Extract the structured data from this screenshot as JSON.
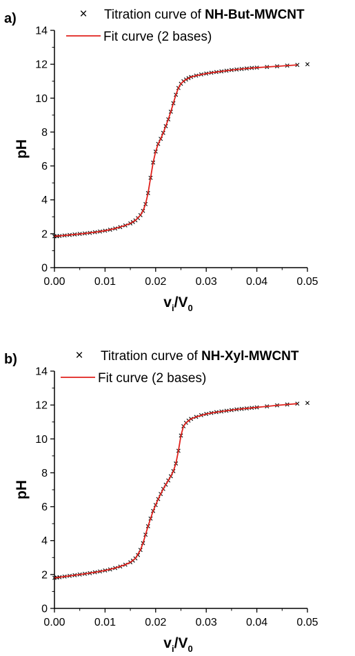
{
  "chart_data": [
    {
      "type": "scatter",
      "panel_label": "a)",
      "xlabel_main": "v",
      "xlabel_sub1": "i",
      "xlabel_sep": "/V",
      "xlabel_sub2": "0",
      "ylabel": "pH",
      "xlim": [
        0.0,
        0.05
      ],
      "ylim": [
        0,
        14
      ],
      "x_ticks": [
        "0.00",
        "0.01",
        "0.02",
        "0.03",
        "0.04",
        "0.05"
      ],
      "y_ticks": [
        "0",
        "2",
        "4",
        "6",
        "8",
        "10",
        "12",
        "14"
      ],
      "legend_position": "top",
      "legend": {
        "marker_symbol": "×",
        "titration_prefix": "Titration curve of ",
        "titration_sample": "NH-But-MWCNT",
        "fit_label": "Fit curve (2 bases)"
      },
      "colors": {
        "points": "#000000",
        "fit": "#e0201b"
      },
      "series": [
        {
          "name": "Titration curve of NH-But-MWCNT",
          "kind": "points",
          "x": [
            0.0,
            0.0005,
            0.001,
            0.002,
            0.003,
            0.004,
            0.005,
            0.006,
            0.007,
            0.008,
            0.009,
            0.01,
            0.011,
            0.012,
            0.013,
            0.014,
            0.015,
            0.0155,
            0.016,
            0.0165,
            0.017,
            0.0175,
            0.018,
            0.0185,
            0.019,
            0.0195,
            0.02,
            0.0205,
            0.021,
            0.0215,
            0.022,
            0.0225,
            0.023,
            0.0235,
            0.024,
            0.0245,
            0.025,
            0.0255,
            0.026,
            0.0265,
            0.027,
            0.028,
            0.029,
            0.03,
            0.031,
            0.032,
            0.033,
            0.034,
            0.035,
            0.036,
            0.037,
            0.038,
            0.039,
            0.04,
            0.042,
            0.044,
            0.046,
            0.048,
            0.05
          ],
          "y": [
            1.85,
            1.85,
            1.87,
            1.9,
            1.93,
            1.96,
            1.99,
            2.02,
            2.05,
            2.09,
            2.13,
            2.18,
            2.24,
            2.31,
            2.39,
            2.49,
            2.61,
            2.69,
            2.79,
            2.92,
            3.1,
            3.35,
            3.75,
            4.4,
            5.3,
            6.2,
            6.85,
            7.3,
            7.6,
            7.95,
            8.35,
            8.75,
            9.2,
            9.7,
            10.2,
            10.6,
            10.85,
            11.0,
            11.1,
            11.18,
            11.25,
            11.33,
            11.4,
            11.45,
            11.5,
            11.54,
            11.58,
            11.62,
            11.66,
            11.69,
            11.72,
            11.75,
            11.78,
            11.8,
            11.84,
            11.88,
            11.92,
            11.96,
            12.0
          ]
        },
        {
          "name": "Fit curve (2 bases)",
          "kind": "line",
          "x": [
            0.0,
            0.002,
            0.004,
            0.006,
            0.008,
            0.01,
            0.012,
            0.014,
            0.015,
            0.016,
            0.017,
            0.0175,
            0.018,
            0.0185,
            0.019,
            0.0195,
            0.02,
            0.0205,
            0.021,
            0.0215,
            0.022,
            0.0225,
            0.023,
            0.0235,
            0.024,
            0.0245,
            0.025,
            0.0255,
            0.026,
            0.027,
            0.028,
            0.03,
            0.032,
            0.034,
            0.036,
            0.038,
            0.04,
            0.042,
            0.044,
            0.046,
            0.048
          ],
          "y": [
            1.85,
            1.9,
            1.96,
            2.02,
            2.09,
            2.18,
            2.31,
            2.49,
            2.61,
            2.79,
            3.1,
            3.35,
            3.75,
            4.4,
            5.3,
            6.2,
            6.85,
            7.3,
            7.6,
            7.95,
            8.35,
            8.75,
            9.2,
            9.7,
            10.2,
            10.6,
            10.85,
            11.0,
            11.1,
            11.25,
            11.33,
            11.45,
            11.54,
            11.62,
            11.69,
            11.75,
            11.8,
            11.84,
            11.88,
            11.92,
            11.96
          ]
        }
      ]
    },
    {
      "type": "scatter",
      "panel_label": "b)",
      "xlabel_main": "v",
      "xlabel_sub1": "i",
      "xlabel_sep": "/V",
      "xlabel_sub2": "0",
      "ylabel": "pH",
      "xlim": [
        0.0,
        0.05
      ],
      "ylim": [
        0,
        14
      ],
      "x_ticks": [
        "0.00",
        "0.01",
        "0.02",
        "0.03",
        "0.04",
        "0.05"
      ],
      "y_ticks": [
        "0",
        "2",
        "4",
        "6",
        "8",
        "10",
        "12",
        "14"
      ],
      "legend_position": "top",
      "legend": {
        "marker_symbol": "×",
        "titration_prefix": "Titration curve of ",
        "titration_sample": "NH-Xyl-MWCNT",
        "fit_label": "Fit curve (2 bases)"
      },
      "colors": {
        "points": "#000000",
        "fit": "#e0201b"
      },
      "series": [
        {
          "name": "Titration curve of NH-Xyl-MWCNT",
          "kind": "points",
          "x": [
            0.0,
            0.0005,
            0.001,
            0.002,
            0.003,
            0.004,
            0.005,
            0.006,
            0.007,
            0.008,
            0.009,
            0.01,
            0.011,
            0.012,
            0.013,
            0.014,
            0.015,
            0.0155,
            0.016,
            0.0165,
            0.017,
            0.0175,
            0.018,
            0.0185,
            0.019,
            0.0195,
            0.02,
            0.0205,
            0.021,
            0.0215,
            0.022,
            0.0225,
            0.023,
            0.0235,
            0.024,
            0.0245,
            0.025,
            0.0255,
            0.026,
            0.0265,
            0.027,
            0.028,
            0.029,
            0.03,
            0.031,
            0.032,
            0.033,
            0.034,
            0.035,
            0.036,
            0.037,
            0.038,
            0.039,
            0.04,
            0.042,
            0.044,
            0.046,
            0.048,
            0.05
          ],
          "y": [
            1.8,
            1.82,
            1.84,
            1.88,
            1.92,
            1.96,
            2.0,
            2.04,
            2.08,
            2.13,
            2.18,
            2.24,
            2.3,
            2.38,
            2.47,
            2.58,
            2.72,
            2.82,
            2.95,
            3.15,
            3.45,
            3.85,
            4.35,
            4.85,
            5.3,
            5.75,
            6.1,
            6.45,
            6.75,
            7.05,
            7.3,
            7.55,
            7.8,
            8.1,
            8.55,
            9.3,
            10.2,
            10.75,
            10.95,
            11.08,
            11.18,
            11.3,
            11.4,
            11.47,
            11.53,
            11.58,
            11.62,
            11.66,
            11.7,
            11.74,
            11.77,
            11.8,
            11.83,
            11.86,
            11.92,
            11.98,
            12.03,
            12.08,
            12.12
          ]
        },
        {
          "name": "Fit curve (2 bases)",
          "kind": "line",
          "x": [
            0.0,
            0.002,
            0.004,
            0.006,
            0.008,
            0.01,
            0.012,
            0.014,
            0.015,
            0.016,
            0.017,
            0.0175,
            0.018,
            0.0185,
            0.019,
            0.0195,
            0.02,
            0.0205,
            0.021,
            0.0215,
            0.022,
            0.0225,
            0.023,
            0.0235,
            0.024,
            0.0245,
            0.025,
            0.0255,
            0.026,
            0.027,
            0.028,
            0.03,
            0.032,
            0.034,
            0.036,
            0.038,
            0.04,
            0.042,
            0.044,
            0.046,
            0.048
          ],
          "y": [
            1.8,
            1.88,
            1.96,
            2.04,
            2.13,
            2.24,
            2.38,
            2.58,
            2.72,
            2.95,
            3.45,
            3.85,
            4.35,
            4.85,
            5.3,
            5.75,
            6.1,
            6.45,
            6.75,
            7.05,
            7.3,
            7.55,
            7.8,
            8.1,
            8.55,
            9.3,
            10.2,
            10.75,
            10.95,
            11.18,
            11.3,
            11.47,
            11.58,
            11.66,
            11.74,
            11.8,
            11.86,
            11.92,
            11.98,
            12.03,
            12.08
          ]
        }
      ]
    }
  ]
}
